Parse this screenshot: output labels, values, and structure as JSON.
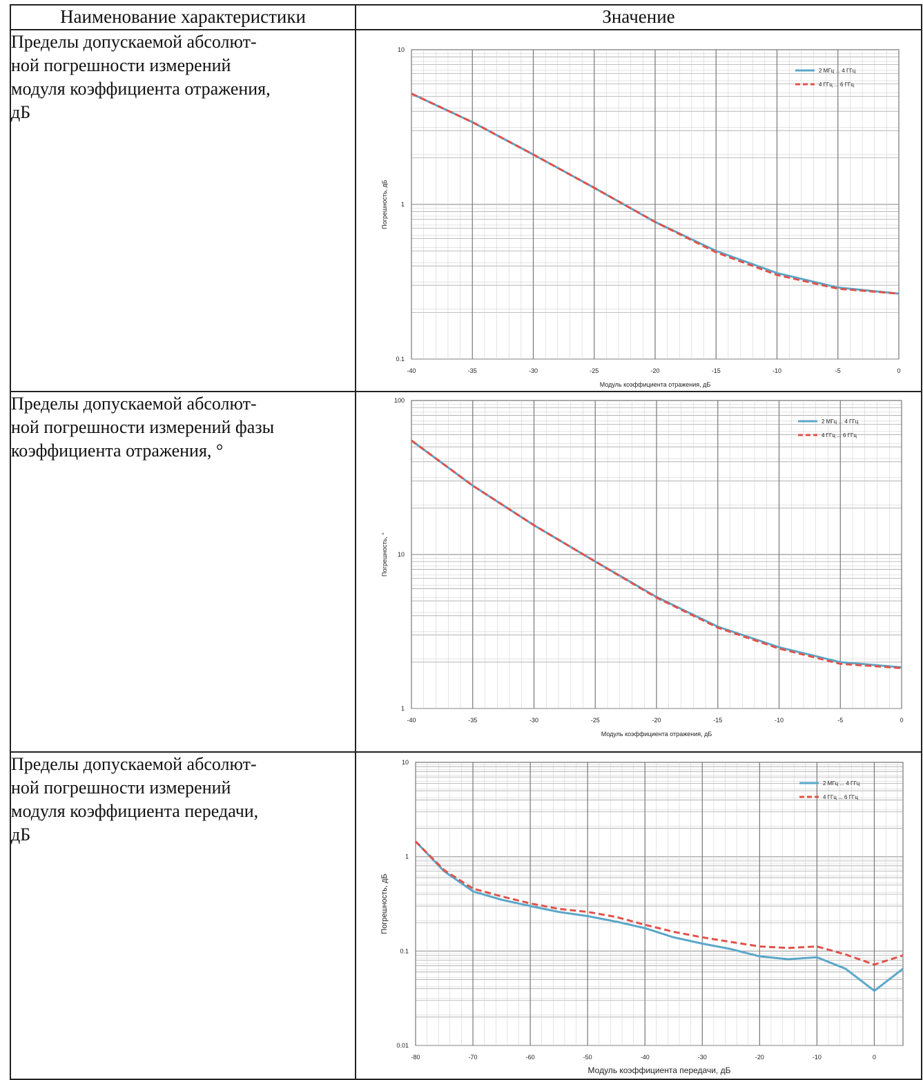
{
  "table": {
    "header": {
      "name_label": "Наименование характеристики",
      "value_label": "Значение"
    },
    "rows": [
      {
        "name": "Пределы допускаемой абсолют-\nной погрешности измерений\nмодуля коэффициента отражения,\nдБ"
      },
      {
        "name": "Пределы допускаемой абсолют-\nной погрешности измерений фазы\nкоэффициента отражения, °"
      },
      {
        "name": "Пределы допускаемой абсолют-\nной погрешности измерений\nмодуля коэффициента передачи,\nдБ"
      }
    ]
  },
  "colors": {
    "series1": "#5aa7c9",
    "series2": "#e0524a",
    "grid": "#9a9a9a",
    "axis": "#222222"
  },
  "chart_data": [
    {
      "type": "line",
      "xlabel": "Модуль коэффициента отражения, дБ",
      "ylabel": "Погрешность, дБ",
      "yscale": "log",
      "xlim": [
        -40,
        0
      ],
      "ylim": [
        0.1,
        10
      ],
      "x_ticks": [
        -40,
        -35,
        -30,
        -25,
        -20,
        -15,
        -10,
        -5,
        0
      ],
      "y_ticks": [
        "0.1",
        "1",
        "10"
      ],
      "grid": true,
      "legend_position": "top-right",
      "series": [
        {
          "name": "2 МГц ... 4 ГГц",
          "style": "solid",
          "x": [
            -40,
            -35,
            -30,
            -25,
            -20,
            -15,
            -10,
            -5,
            0
          ],
          "values": [
            5.2,
            3.4,
            2.1,
            1.28,
            0.77,
            0.5,
            0.36,
            0.29,
            0.265
          ]
        },
        {
          "name": "4 ГГц ... 6 ГГц",
          "style": "dashed",
          "x": [
            -40,
            -35,
            -30,
            -25,
            -20,
            -15,
            -10,
            -5,
            0
          ],
          "values": [
            5.2,
            3.4,
            2.1,
            1.28,
            0.77,
            0.49,
            0.35,
            0.285,
            0.265
          ]
        }
      ]
    },
    {
      "type": "line",
      "xlabel": "Модуль коэффициента отражения, дБ",
      "ylabel": "Погрешность, °",
      "yscale": "log",
      "xlim": [
        -40,
        0
      ],
      "ylim": [
        1,
        100
      ],
      "x_ticks": [
        -40,
        -35,
        -30,
        -25,
        -20,
        -15,
        -10,
        -5,
        0
      ],
      "y_ticks": [
        "1",
        "10",
        "100"
      ],
      "grid": true,
      "legend_position": "top-right",
      "series": [
        {
          "name": "2 МГц ... 4 ГГц",
          "style": "solid",
          "x": [
            -40,
            -35,
            -30,
            -25,
            -20,
            -15,
            -10,
            -5,
            0
          ],
          "values": [
            55,
            28,
            15.5,
            9.0,
            5.3,
            3.4,
            2.5,
            2.0,
            1.85
          ]
        },
        {
          "name": "4 ГГц ... 6 ГГц",
          "style": "dashed",
          "x": [
            -40,
            -35,
            -30,
            -25,
            -20,
            -15,
            -10,
            -5,
            0
          ],
          "values": [
            55,
            28,
            15.5,
            9.0,
            5.25,
            3.35,
            2.45,
            1.95,
            1.83
          ]
        }
      ]
    },
    {
      "type": "line",
      "xlabel": "Модуль коэффициента передачи, дБ",
      "ylabel": "Погрешность, дБ",
      "yscale": "log",
      "xlim": [
        -80,
        5
      ],
      "ylim": [
        0.01,
        10
      ],
      "x_ticks": [
        -80,
        -70,
        -60,
        -50,
        -40,
        -30,
        -20,
        -10,
        0
      ],
      "y_ticks": [
        "0.01",
        "0.1",
        "1",
        "10"
      ],
      "grid": true,
      "legend_position": "top-right",
      "series": [
        {
          "name": "2 МГц ... 4 ГГц",
          "style": "solid",
          "x": [
            -80,
            -75,
            -70,
            -65,
            -60,
            -55,
            -50,
            -45,
            -40,
            -35,
            -30,
            -25,
            -20,
            -15,
            -10,
            -5,
            0,
            5
          ],
          "values": [
            1.45,
            0.7,
            0.43,
            0.35,
            0.3,
            0.26,
            0.235,
            0.205,
            0.175,
            0.14,
            0.12,
            0.105,
            0.088,
            0.082,
            0.086,
            0.065,
            0.038,
            0.065
          ]
        },
        {
          "name": "4 ГГц ... 6 ГГц",
          "style": "dashed",
          "x": [
            -80,
            -75,
            -70,
            -65,
            -60,
            -55,
            -50,
            -45,
            -40,
            -35,
            -30,
            -25,
            -20,
            -15,
            -10,
            -5,
            0,
            5
          ],
          "values": [
            1.45,
            0.72,
            0.46,
            0.38,
            0.32,
            0.28,
            0.26,
            0.23,
            0.19,
            0.16,
            0.14,
            0.125,
            0.112,
            0.108,
            0.112,
            0.092,
            0.072,
            0.09
          ]
        }
      ]
    }
  ]
}
